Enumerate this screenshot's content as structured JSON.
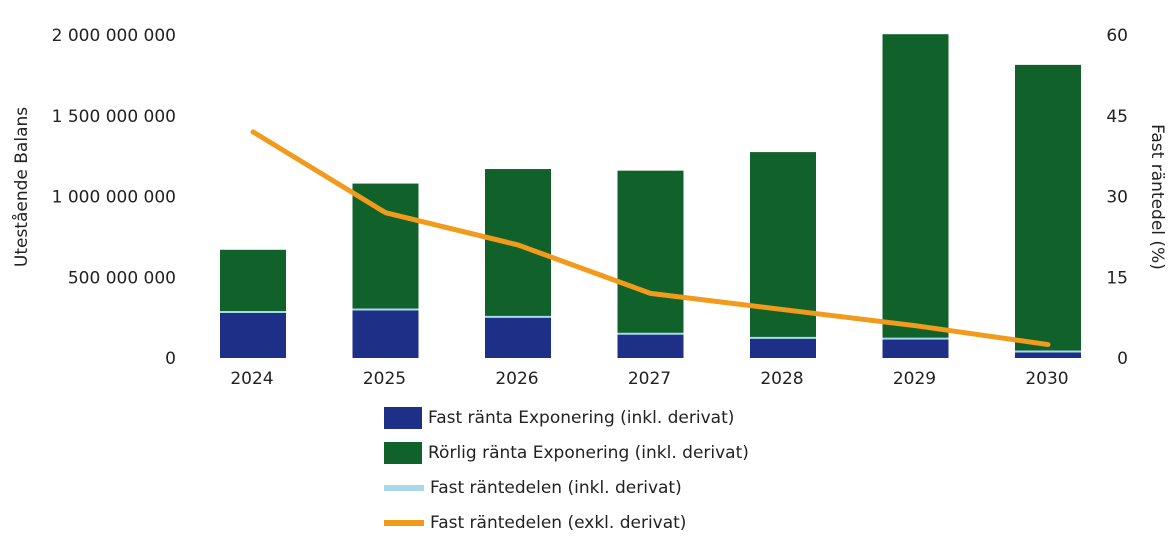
{
  "chart_data": {
    "type": "bar",
    "stacked": true,
    "categories": [
      "2024",
      "2025",
      "2026",
      "2027",
      "2028",
      "2029",
      "2030"
    ],
    "left_axis": {
      "label": "Utestående Balans",
      "ylim": [
        0,
        2000000000
      ],
      "ticks": [
        "0",
        "500 000 000",
        "1 000 000 000",
        "1 500 000 000",
        "2 000 000 000"
      ]
    },
    "right_axis": {
      "label": "Fast räntedel (%)",
      "ylim": [
        0,
        60
      ],
      "ticks": [
        "0",
        "15",
        "30",
        "45",
        "60"
      ]
    },
    "series": [
      {
        "name": "Fast ränta Exponering (inkl. derivat)",
        "kind": "bar",
        "axis": "left",
        "color": "#1d2f86",
        "values": [
          285000000,
          300000000,
          255000000,
          150000000,
          125000000,
          120000000,
          40000000
        ]
      },
      {
        "name": "Rörlig ränta Exponering (inkl. derivat)",
        "kind": "bar",
        "axis": "left",
        "color": "#11622a",
        "values": [
          385000000,
          780000000,
          915000000,
          1010000000,
          1150000000,
          1885000000,
          1775000000
        ]
      },
      {
        "name": "Fast räntedelen (inkl. derivat)",
        "kind": "line",
        "axis": "right",
        "color": "#a8d8ea",
        "values": [
          42,
          27,
          21,
          12,
          9,
          6,
          2.5
        ]
      },
      {
        "name": "Fast räntedelen (exkl. derivat)",
        "kind": "line",
        "axis": "right",
        "color": "#f29a1c",
        "values": [
          42,
          27,
          21,
          12,
          9,
          6,
          2.5
        ]
      }
    ],
    "legend_position": "bottom",
    "grid": false
  },
  "legend": {
    "items": [
      {
        "label": "Fast ränta Exponering (inkl. derivat)"
      },
      {
        "label": "Rörlig ränta Exponering (inkl. derivat)"
      },
      {
        "label": "Fast räntedelen (inkl. derivat)"
      },
      {
        "label": "Fast räntedelen (exkl. derivat)"
      }
    ]
  }
}
